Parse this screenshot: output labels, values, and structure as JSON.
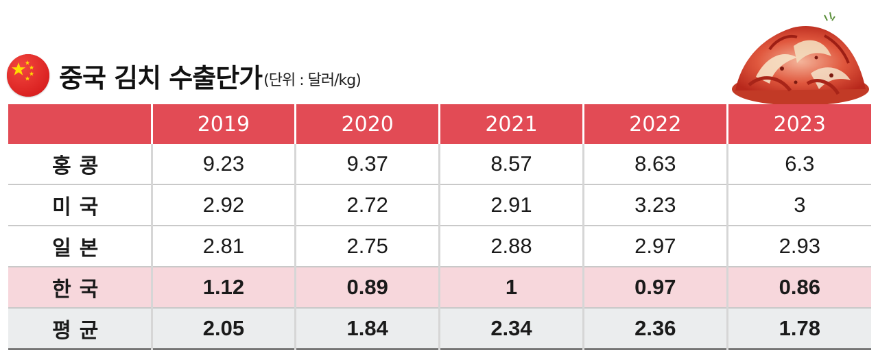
{
  "title": "중국 김치 수출단가",
  "unit": "(단위 : 달러/kg)",
  "chart_data": {
    "type": "table",
    "columns": [
      "",
      "2019",
      "2020",
      "2021",
      "2022",
      "2023"
    ],
    "rows": [
      {
        "label": "홍콩",
        "values": [
          "9.23",
          "9.37",
          "8.57",
          "8.63",
          "6.3"
        ]
      },
      {
        "label": "미국",
        "values": [
          "2.92",
          "2.72",
          "2.91",
          "3.23",
          "3"
        ]
      },
      {
        "label": "일본",
        "values": [
          "2.81",
          "2.75",
          "2.88",
          "2.97",
          "2.93"
        ]
      },
      {
        "label": "한국",
        "values": [
          "1.12",
          "0.89",
          "1",
          "0.97",
          "0.86"
        ]
      },
      {
        "label": "평균",
        "values": [
          "2.05",
          "1.84",
          "2.34",
          "2.36",
          "1.78"
        ]
      }
    ]
  },
  "colors": {
    "header": "#e24b55",
    "highlight_row": "#f7d7dc",
    "average_row": "#ebedee",
    "flag": "#e32a2a",
    "flag_star": "#ffde00"
  },
  "icons": {
    "flag": "china-flag-icon",
    "food": "kimchi-image"
  }
}
